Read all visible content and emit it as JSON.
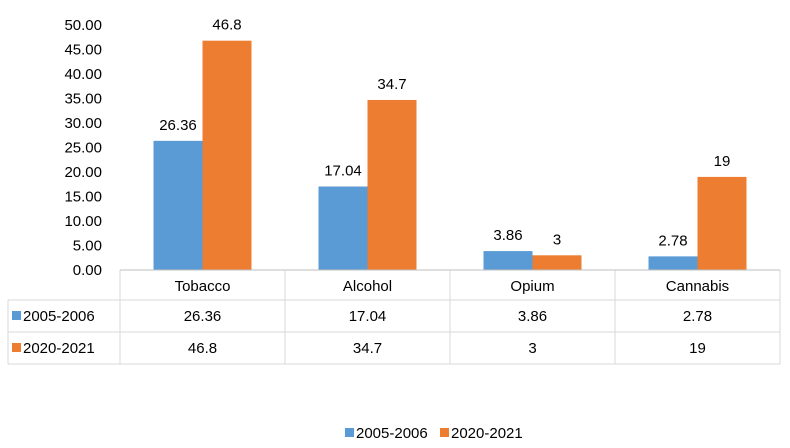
{
  "chart_data": {
    "type": "bar",
    "categories": [
      "Tobacco",
      "Alcohol",
      "Opium",
      "Cannabis"
    ],
    "series": [
      {
        "name": "2005-2006",
        "values": [
          26.36,
          17.04,
          3.86,
          2.78
        ],
        "labels": [
          "26.36",
          "17.04",
          "3.86",
          "2.78"
        ],
        "color": "#5B9BD5"
      },
      {
        "name": "2020-2021",
        "values": [
          46.8,
          34.7,
          3,
          19
        ],
        "labels": [
          "46.8",
          "34.7",
          "3",
          "19"
        ],
        "color": "#ED7D31"
      }
    ],
    "yticks": [
      "0.00",
      "5.00",
      "10.00",
      "15.00",
      "20.00",
      "25.00",
      "30.00",
      "35.00",
      "40.00",
      "45.00",
      "50.00"
    ],
    "ylim": [
      0,
      50
    ],
    "title": "",
    "xlabel": "",
    "ylabel": "",
    "grid": false,
    "legend_position": "bottom",
    "data_table": true
  },
  "colors": {
    "axis": "#bfbfbf",
    "table_border": "#d9d9d9"
  }
}
